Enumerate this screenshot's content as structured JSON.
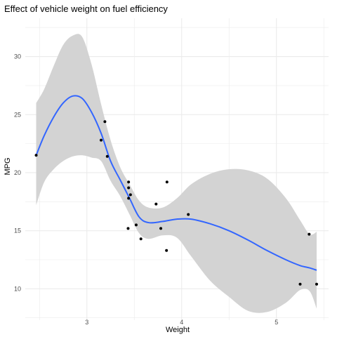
{
  "chart_data": {
    "type": "scatter",
    "title": "Effect of vehicle weight on fuel efficiency",
    "xlabel": "Weight",
    "ylabel": "MPG",
    "xlim": [
      2.35,
      5.55
    ],
    "ylim": [
      7.3,
      33.3
    ],
    "x_ticks": [
      3,
      4,
      5
    ],
    "x_tick_labels": [
      "3",
      "4",
      "5"
    ],
    "y_ticks": [
      10,
      15,
      20,
      25,
      30
    ],
    "y_tick_labels": [
      "10",
      "15",
      "20",
      "25",
      "30"
    ],
    "grid": true,
    "legend": "none",
    "colors": {
      "background": "#ffffff",
      "grid": "#ebebeb",
      "points": "#000000",
      "smooth_line": "#3366ff",
      "confidence_band": "#d3d3d3"
    },
    "series": [
      {
        "kind": "points",
        "points": [
          {
            "x": 2.465,
            "y": 21.5
          },
          {
            "x": 3.15,
            "y": 22.8
          },
          {
            "x": 3.19,
            "y": 24.4
          },
          {
            "x": 3.215,
            "y": 21.4
          },
          {
            "x": 3.435,
            "y": 15.2
          },
          {
            "x": 3.44,
            "y": 19.2
          },
          {
            "x": 3.44,
            "y": 17.8
          },
          {
            "x": 3.44,
            "y": 18.7
          },
          {
            "x": 3.46,
            "y": 18.1
          },
          {
            "x": 3.52,
            "y": 15.5
          },
          {
            "x": 3.57,
            "y": 14.3
          },
          {
            "x": 3.73,
            "y": 17.3
          },
          {
            "x": 3.78,
            "y": 15.2
          },
          {
            "x": 3.84,
            "y": 13.3
          },
          {
            "x": 3.845,
            "y": 19.2
          },
          {
            "x": 4.07,
            "y": 16.4
          },
          {
            "x": 5.25,
            "y": 10.4
          },
          {
            "x": 5.345,
            "y": 14.7
          },
          {
            "x": 5.424,
            "y": 10.4
          }
        ]
      },
      {
        "kind": "smooth",
        "method": "loess",
        "points": [
          {
            "x": 2.465,
            "y": 21.5,
            "ymin": 17.2,
            "ymax": 26.0
          },
          {
            "x": 2.55,
            "y": 23.2,
            "ymin": 19.2,
            "ymax": 27.2
          },
          {
            "x": 2.65,
            "y": 24.8,
            "ymin": 20.3,
            "ymax": 29.2
          },
          {
            "x": 2.75,
            "y": 26.0,
            "ymin": 21.0,
            "ymax": 31.0
          },
          {
            "x": 2.85,
            "y": 26.6,
            "ymin": 21.4,
            "ymax": 31.8
          },
          {
            "x": 2.95,
            "y": 26.4,
            "ymin": 21.5,
            "ymax": 31.7
          },
          {
            "x": 3.05,
            "y": 25.2,
            "ymin": 21.3,
            "ymax": 29.3
          },
          {
            "x": 3.15,
            "y": 23.4,
            "ymin": 21.0,
            "ymax": 25.9
          },
          {
            "x": 3.25,
            "y": 21.0,
            "ymin": 19.3,
            "ymax": 22.8
          },
          {
            "x": 3.35,
            "y": 19.4,
            "ymin": 18.0,
            "ymax": 20.5
          },
          {
            "x": 3.45,
            "y": 17.8,
            "ymin": 16.4,
            "ymax": 19.0
          },
          {
            "x": 3.55,
            "y": 16.2,
            "ymin": 14.8,
            "ymax": 17.6
          },
          {
            "x": 3.65,
            "y": 15.7,
            "ymin": 14.3,
            "ymax": 17.0
          },
          {
            "x": 3.8,
            "y": 15.8,
            "ymin": 14.6,
            "ymax": 17.0
          },
          {
            "x": 3.95,
            "y": 16.0,
            "ymin": 14.4,
            "ymax": 17.8
          },
          {
            "x": 4.1,
            "y": 16.0,
            "ymin": 12.8,
            "ymax": 19.0
          },
          {
            "x": 4.3,
            "y": 15.6,
            "ymin": 10.7,
            "ymax": 19.9
          },
          {
            "x": 4.5,
            "y": 15.0,
            "ymin": 9.3,
            "ymax": 20.3
          },
          {
            "x": 4.7,
            "y": 14.2,
            "ymin": 8.1,
            "ymax": 20.2
          },
          {
            "x": 4.9,
            "y": 13.3,
            "ymin": 8.0,
            "ymax": 19.5
          },
          {
            "x": 5.1,
            "y": 12.5,
            "ymin": 8.8,
            "ymax": 17.8
          },
          {
            "x": 5.25,
            "y": 12.0,
            "ymin": 9.9,
            "ymax": 15.9
          },
          {
            "x": 5.35,
            "y": 11.8,
            "ymin": 9.8,
            "ymax": 14.7
          },
          {
            "x": 5.424,
            "y": 11.6,
            "ymin": 8.3,
            "ymax": 14.9
          }
        ]
      }
    ]
  }
}
